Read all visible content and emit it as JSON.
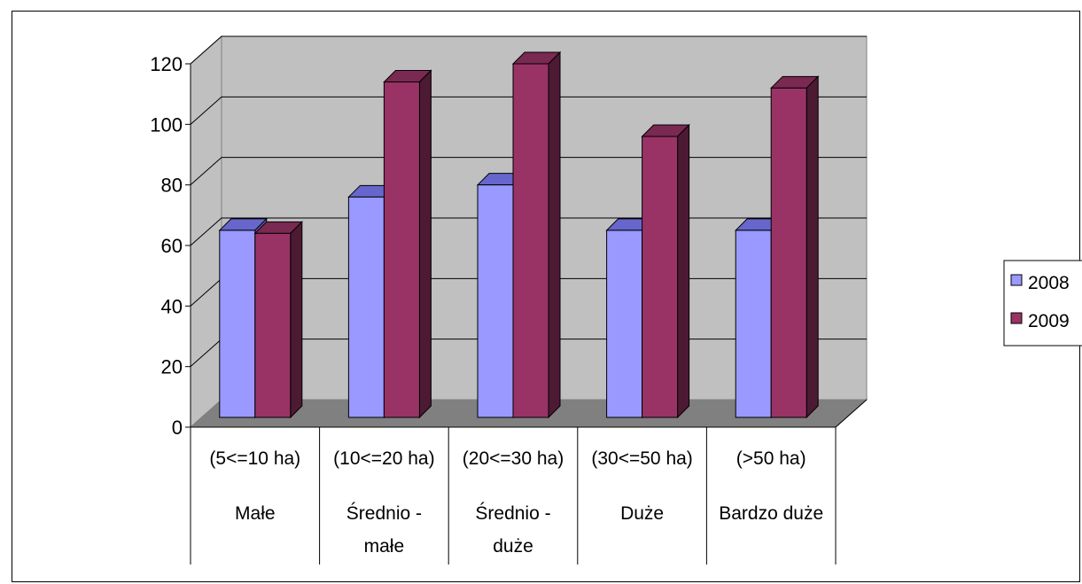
{
  "chart_data": {
    "type": "bar",
    "categories": [
      [
        "(5<=10 ha)",
        "Małe",
        ""
      ],
      [
        "(10<=20 ha)",
        "Średnio -",
        "małe"
      ],
      [
        "(20<=30 ha)",
        "Średnio -",
        "duże"
      ],
      [
        "(30<=50 ha)",
        "Duże",
        ""
      ],
      [
        "(>50 ha)",
        "Bardzo duże",
        ""
      ]
    ],
    "series": [
      {
        "name": "2008",
        "values": [
          65,
          76,
          80,
          65,
          65
        ],
        "color": "#9999ff",
        "top": "#6666cc",
        "side": "#5c5c99"
      },
      {
        "name": "2009",
        "values": [
          64,
          114,
          120,
          96,
          112
        ],
        "color": "#993366",
        "top": "#7a2952",
        "side": "#4d1a33"
      }
    ],
    "y_ticks": [
      "0",
      "20",
      "40",
      "60",
      "80",
      "100",
      "120"
    ],
    "ylim": [
      0,
      120
    ],
    "grid": true,
    "legend_position": "right",
    "title": "",
    "xlabel": "",
    "ylabel": ""
  }
}
